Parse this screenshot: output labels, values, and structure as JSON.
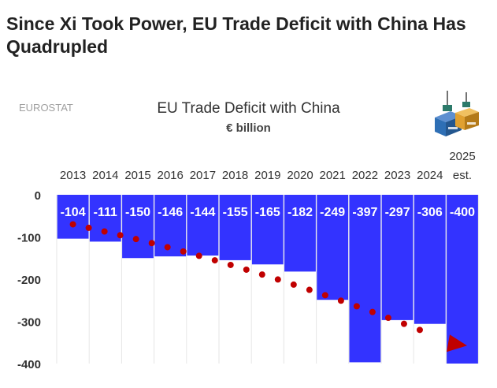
{
  "headline": "Since Xi Took Power, EU Trade Deficit with China Has Quadrupled",
  "source": "EUROSTAT",
  "chart_data": {
    "type": "bar",
    "title": "EU Trade Deficit with China",
    "subtitle": "€ billion",
    "categories": [
      "2013",
      "2014",
      "2015",
      "2016",
      "2017",
      "2018",
      "2019",
      "2020",
      "2021",
      "2022",
      "2023",
      "2024",
      "2025 est."
    ],
    "category_lines": [
      [
        "2013"
      ],
      [
        "2014"
      ],
      [
        "2015"
      ],
      [
        "2016"
      ],
      [
        "2017"
      ],
      [
        "2018"
      ],
      [
        "2019"
      ],
      [
        "2020"
      ],
      [
        "2021"
      ],
      [
        "2022"
      ],
      [
        "2023"
      ],
      [
        "2024"
      ],
      [
        "2025",
        "est."
      ]
    ],
    "values": [
      -104,
      -111,
      -150,
      -146,
      -144,
      -155,
      -165,
      -182,
      -249,
      -397,
      -297,
      -306,
      -400
    ],
    "data_labels": [
      "-104",
      "-111",
      "-150",
      "-146",
      "-144",
      "-155",
      "-165",
      "-182",
      "-249",
      "-397",
      "-297",
      "-306",
      "-400"
    ],
    "yticks": [
      0,
      -100,
      -200,
      -300,
      -400
    ],
    "ylim": [
      -400,
      0
    ],
    "xlabel": "",
    "ylabel": "",
    "bar_color": "#3333ff",
    "trend_color": "#c00000",
    "trend": {
      "style": "dotted-arrow",
      "from_value": -70,
      "to_value": -350
    }
  },
  "colors": {
    "container_blue": "#2e6fb5",
    "container_orange": "#e0a030"
  },
  "icons": [
    "shipping-containers-icon"
  ]
}
